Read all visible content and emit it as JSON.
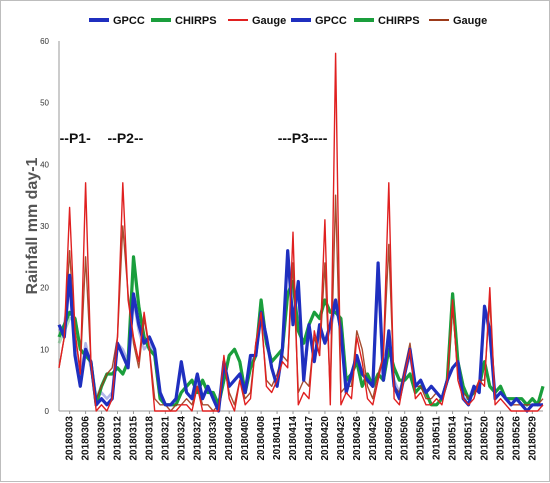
{
  "chart_data": {
    "type": "line",
    "ylabel": "Rainfall mm day-1",
    "ylim": [
      0,
      60
    ],
    "yticks": [
      0,
      10,
      20,
      30,
      40,
      50,
      60
    ],
    "x": [
      "20180301",
      "20180302",
      "20180303",
      "20180304",
      "20180305",
      "20180306",
      "20180307",
      "20180308",
      "20180309",
      "20180310",
      "20180311",
      "20180312",
      "20180313",
      "20180314",
      "20180315",
      "20180316",
      "20180317",
      "20180318",
      "20180319",
      "20180320",
      "20180321",
      "20180322",
      "20180323",
      "20180324",
      "20180325",
      "20180326",
      "20180327",
      "20180328",
      "20180329",
      "20180330",
      "20180331",
      "20180401",
      "20180402",
      "20180403",
      "20180404",
      "20180405",
      "20180406",
      "20180407",
      "20180408",
      "20180409",
      "20180410",
      "20180411",
      "20180412",
      "20180413",
      "20180414",
      "20180415",
      "20180416",
      "20180417",
      "20180418",
      "20180419",
      "20180420",
      "20180421",
      "20180422",
      "20180423",
      "20180424",
      "20180425",
      "20180426",
      "20180427",
      "20180428",
      "20180429",
      "20180430",
      "20180501",
      "20180502",
      "20180503",
      "20180504",
      "20180505",
      "20180506",
      "20180507",
      "20180508",
      "20180509",
      "20180510",
      "20180511",
      "20180512",
      "20180513",
      "20180514",
      "20180515",
      "20180516",
      "20180517",
      "20180518",
      "20180519",
      "20180520",
      "20180521",
      "20180522",
      "20180523",
      "20180524",
      "20180525",
      "20180526",
      "20180527",
      "20180528",
      "20180529",
      "20180530",
      "20180531"
    ],
    "xticks": [
      "20180303",
      "20180306",
      "20180309",
      "20180312",
      "20180315",
      "20180318",
      "20180321",
      "20180324",
      "20180327",
      "20180330",
      "20180402",
      "20180405",
      "20180408",
      "20180411",
      "20180414",
      "20180417",
      "20180420",
      "20180423",
      "20180426",
      "20180429",
      "20180502",
      "20180505",
      "20180508",
      "20180511",
      "20180514",
      "20180517",
      "20180520",
      "20180523",
      "20180526",
      "20180529"
    ],
    "series": [
      {
        "name": "GPCC",
        "color": "#1f2fbf",
        "values": [
          14,
          12,
          22,
          9,
          4,
          10,
          8,
          1,
          2,
          1,
          2,
          11,
          9,
          7,
          19,
          14,
          11,
          12,
          10,
          3,
          1,
          1,
          2,
          8,
          3,
          2,
          6,
          2,
          4,
          2,
          0,
          8,
          4,
          5,
          6,
          3,
          9,
          9,
          16,
          12,
          7,
          4,
          10,
          26,
          14,
          21,
          5,
          14,
          8,
          14,
          11,
          14,
          18,
          13,
          3,
          6,
          9,
          6,
          5,
          4,
          24,
          5,
          13,
          4,
          2,
          6,
          10,
          4,
          5,
          3,
          4,
          3,
          2,
          5,
          7,
          8,
          2,
          1,
          4,
          3,
          17,
          13,
          2,
          3,
          2,
          1,
          2,
          1,
          0,
          1,
          1,
          1
        ]
      },
      {
        "name": "CHIRPS",
        "color": "#1a9e3c",
        "values": [
          12,
          14,
          16,
          15,
          10,
          9,
          8,
          1,
          4,
          6,
          6,
          7,
          6,
          8,
          25,
          17,
          12,
          10,
          9,
          2,
          1,
          1,
          1,
          3,
          4,
          5,
          3,
          5,
          3,
          3,
          1,
          5,
          9,
          10,
          8,
          3,
          7,
          9,
          18,
          11,
          8,
          9,
          10,
          19,
          21,
          13,
          11,
          14,
          16,
          15,
          18,
          16,
          16,
          15,
          5,
          6,
          8,
          4,
          6,
          4,
          6,
          5,
          10,
          7,
          5,
          5,
          6,
          3,
          4,
          3,
          1,
          1,
          2,
          5,
          19,
          8,
          4,
          2,
          3,
          4,
          8,
          4,
          3,
          4,
          2,
          2,
          2,
          2,
          1,
          2,
          1,
          4
        ]
      },
      {
        "name": "Gauge",
        "color": "#e02020",
        "values": [
          7,
          12,
          33,
          13,
          6,
          37,
          8,
          0,
          1,
          0,
          2,
          12,
          37,
          18,
          12,
          8,
          16,
          10,
          0,
          0,
          0,
          0,
          0,
          1,
          1,
          0,
          4,
          0,
          0,
          0,
          0,
          9,
          2,
          0,
          5,
          1,
          2,
          11,
          16,
          4,
          3,
          5,
          8,
          7,
          29,
          1,
          3,
          2,
          13,
          9,
          31,
          1,
          58,
          1,
          3,
          2,
          12,
          8,
          2,
          1,
          5,
          9,
          37,
          2,
          1,
          6,
          10,
          2,
          3,
          1,
          1,
          2,
          1,
          5,
          18,
          5,
          2,
          1,
          2,
          5,
          4,
          20,
          1,
          2,
          1,
          0,
          0,
          0,
          0,
          0,
          0,
          1
        ]
      },
      {
        "name": "GPCC",
        "color": "#1f2fbf",
        "values": [
          13,
          14,
          21,
          10,
          5,
          11,
          7,
          2,
          3,
          2,
          3,
          11,
          10,
          8,
          18,
          13,
          10,
          11,
          9,
          3,
          1,
          1,
          2,
          7,
          3,
          2,
          5,
          2,
          4,
          2,
          1,
          7,
          4,
          5,
          6,
          4,
          8,
          9,
          15,
          11,
          7,
          4,
          9,
          25,
          14,
          20,
          5,
          13,
          8,
          13,
          11,
          13,
          17,
          13,
          4,
          6,
          9,
          6,
          5,
          4,
          22,
          5,
          12,
          5,
          3,
          6,
          9,
          4,
          5,
          3,
          4,
          3,
          2,
          5,
          7,
          8,
          2,
          2,
          4,
          3,
          16,
          12,
          2,
          3,
          2,
          1,
          2,
          1,
          1,
          1,
          1,
          1
        ]
      },
      {
        "name": "CHIRPS",
        "color": "#1a9e3c",
        "values": [
          11,
          13,
          15,
          15,
          10,
          9,
          8,
          2,
          4,
          6,
          6,
          7,
          6,
          8,
          24,
          17,
          12,
          10,
          9,
          2,
          1,
          1,
          1,
          3,
          4,
          5,
          3,
          5,
          3,
          3,
          1,
          5,
          9,
          10,
          8,
          3,
          7,
          9,
          18,
          11,
          8,
          9,
          10,
          19,
          21,
          13,
          11,
          14,
          16,
          15,
          18,
          16,
          16,
          15,
          5,
          6,
          8,
          4,
          6,
          4,
          6,
          5,
          10,
          7,
          5,
          5,
          6,
          3,
          4,
          3,
          1,
          1,
          2,
          5,
          19,
          8,
          4,
          2,
          3,
          4,
          8,
          4,
          3,
          4,
          2,
          2,
          2,
          2,
          1,
          2,
          1,
          4
        ]
      },
      {
        "name": "Gauge",
        "color": "#9c3a1a",
        "values": [
          7,
          12,
          26,
          12,
          7,
          25,
          8,
          2,
          4,
          6,
          7,
          12,
          30,
          19,
          11,
          7,
          15,
          10,
          2,
          1,
          1,
          0,
          1,
          1,
          2,
          1,
          4,
          1,
          1,
          0,
          1,
          8,
          3,
          1,
          5,
          2,
          3,
          11,
          15,
          5,
          4,
          6,
          9,
          8,
          24,
          3,
          5,
          4,
          12,
          9,
          24,
          3,
          35,
          3,
          4,
          4,
          13,
          10,
          4,
          2,
          6,
          9,
          27,
          4,
          3,
          7,
          11,
          4,
          4,
          2,
          2,
          3,
          2,
          5,
          17,
          6,
          3,
          2,
          3,
          5,
          5,
          18,
          2,
          3,
          2,
          1,
          1,
          1,
          1,
          1,
          1,
          2
        ]
      }
    ],
    "legend": "top",
    "annotations": [
      {
        "text": "--P1-",
        "x": "20180303",
        "y": 42
      },
      {
        "text": "--P2--",
        "x": "20180312",
        "y": 42
      },
      {
        "text": "---P3----",
        "x": "20180413",
        "y": 42
      }
    ],
    "grid": false
  }
}
